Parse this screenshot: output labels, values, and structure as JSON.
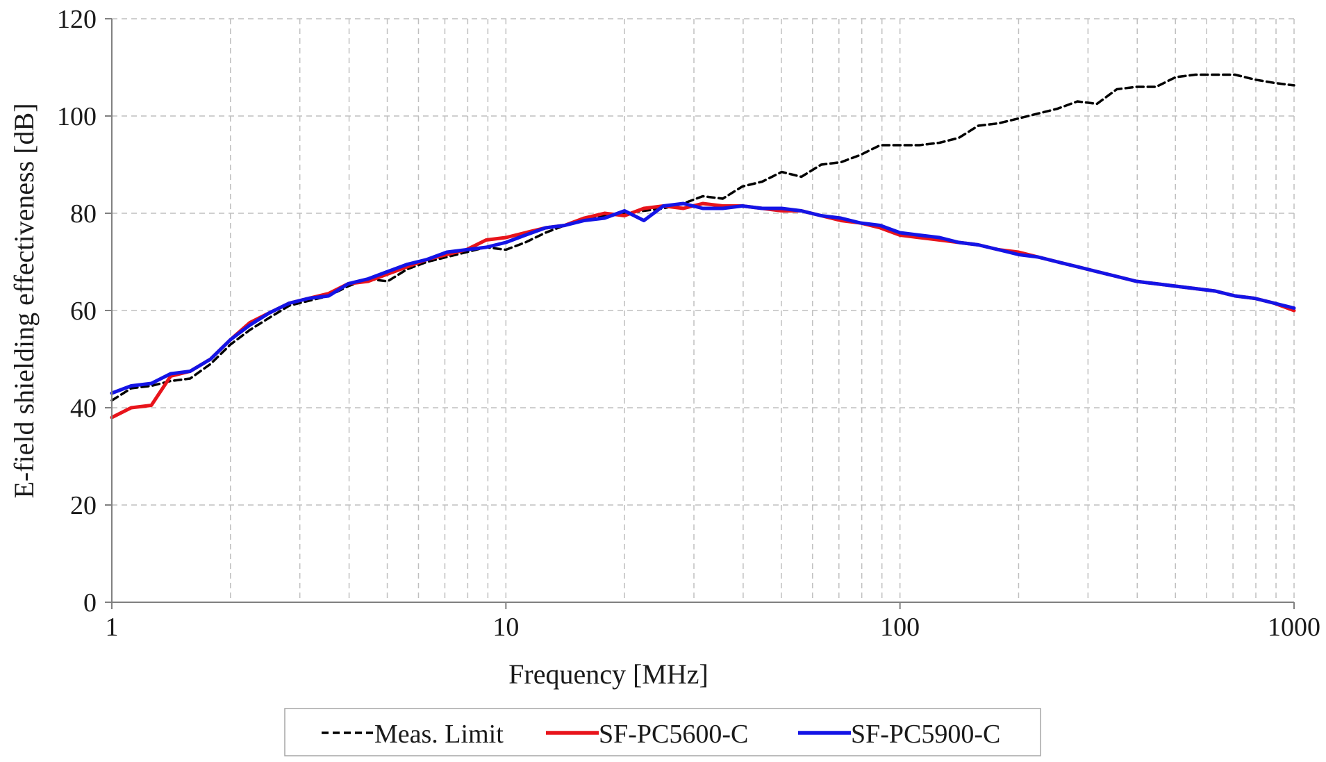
{
  "chart_data": {
    "type": "line",
    "xlabel": "Frequency [MHz]",
    "ylabel": "E-field shielding effectiveness [dB]",
    "xscale": "log",
    "xlim": [
      1,
      1000
    ],
    "ylim": [
      0,
      120
    ],
    "x_ticks": [
      1,
      10,
      100,
      1000
    ],
    "x_tick_labels": [
      "1",
      "10",
      "100",
      "1000"
    ],
    "y_ticks": [
      0,
      20,
      40,
      60,
      80,
      100,
      120
    ],
    "y_tick_labels": [
      "0",
      "20",
      "40",
      "60",
      "80",
      "100",
      "120"
    ],
    "grid": true,
    "legend_position": "bottom",
    "series": [
      {
        "name": "Meas. Limit",
        "color": "#000000",
        "style": "dashed",
        "points": [
          [
            1,
            41.5
          ],
          [
            1.12,
            44
          ],
          [
            1.26,
            44.5
          ],
          [
            1.41,
            45.5
          ],
          [
            1.58,
            46
          ],
          [
            1.78,
            49
          ],
          [
            2,
            53
          ],
          [
            2.24,
            56
          ],
          [
            2.51,
            58.5
          ],
          [
            2.82,
            61
          ],
          [
            3.16,
            62
          ],
          [
            3.55,
            63
          ],
          [
            3.98,
            65
          ],
          [
            4.47,
            66.5
          ],
          [
            5.01,
            66
          ],
          [
            5.62,
            68.5
          ],
          [
            6.31,
            70
          ],
          [
            7.08,
            71
          ],
          [
            7.94,
            72
          ],
          [
            8.91,
            73
          ],
          [
            10,
            72.5
          ],
          [
            11.2,
            74
          ],
          [
            12.6,
            76
          ],
          [
            14.1,
            77.5
          ],
          [
            15.8,
            78.5
          ],
          [
            17.8,
            79.5
          ],
          [
            20,
            80
          ],
          [
            22.4,
            80.5
          ],
          [
            25.1,
            81
          ],
          [
            28.2,
            82
          ],
          [
            31.6,
            83.5
          ],
          [
            35.5,
            83
          ],
          [
            39.8,
            85.5
          ],
          [
            44.7,
            86.5
          ],
          [
            50.1,
            88.5
          ],
          [
            56.2,
            87.5
          ],
          [
            63.1,
            90
          ],
          [
            70.8,
            90.5
          ],
          [
            79.4,
            92
          ],
          [
            89.1,
            94
          ],
          [
            100,
            94
          ],
          [
            112,
            94
          ],
          [
            126,
            94.5
          ],
          [
            141,
            95.5
          ],
          [
            158,
            98
          ],
          [
            178,
            98.5
          ],
          [
            200,
            99.5
          ],
          [
            224,
            100.5
          ],
          [
            251,
            101.5
          ],
          [
            282,
            103
          ],
          [
            316,
            102.5
          ],
          [
            355,
            105.5
          ],
          [
            398,
            106
          ],
          [
            447,
            106
          ],
          [
            501,
            108
          ],
          [
            562,
            108.5
          ],
          [
            631,
            108.5
          ],
          [
            708,
            108.5
          ],
          [
            794,
            107.5
          ],
          [
            891,
            106.8
          ],
          [
            1000,
            106.3
          ]
        ]
      },
      {
        "name": "SF-PC5600-C",
        "color": "#e8141b",
        "style": "solid",
        "points": [
          [
            1,
            38
          ],
          [
            1.12,
            40
          ],
          [
            1.26,
            40.5
          ],
          [
            1.41,
            46.5
          ],
          [
            1.58,
            47.5
          ],
          [
            1.78,
            50
          ],
          [
            2,
            54
          ],
          [
            2.24,
            57.5
          ],
          [
            2.51,
            59.5
          ],
          [
            2.82,
            61.5
          ],
          [
            3.16,
            62.5
          ],
          [
            3.55,
            63.5
          ],
          [
            3.98,
            65.5
          ],
          [
            4.47,
            66
          ],
          [
            5.01,
            67.5
          ],
          [
            5.62,
            69
          ],
          [
            6.31,
            70.5
          ],
          [
            7.08,
            71.5
          ],
          [
            7.94,
            72.5
          ],
          [
            8.91,
            74.5
          ],
          [
            10,
            75
          ],
          [
            11.2,
            76
          ],
          [
            12.6,
            77
          ],
          [
            14.1,
            77.5
          ],
          [
            15.8,
            79
          ],
          [
            17.8,
            80
          ],
          [
            20,
            79.5
          ],
          [
            22.4,
            81
          ],
          [
            25.1,
            81.5
          ],
          [
            28.2,
            81
          ],
          [
            31.6,
            82
          ],
          [
            35.5,
            81.5
          ],
          [
            39.8,
            81.5
          ],
          [
            44.7,
            81
          ],
          [
            50.1,
            80.5
          ],
          [
            56.2,
            80.5
          ],
          [
            63.1,
            79.5
          ],
          [
            70.8,
            78.5
          ],
          [
            79.4,
            78
          ],
          [
            89.1,
            77
          ],
          [
            100,
            75.5
          ],
          [
            112,
            75
          ],
          [
            126,
            74.5
          ],
          [
            141,
            74
          ],
          [
            158,
            73.5
          ],
          [
            178,
            72.5
          ],
          [
            200,
            72
          ],
          [
            224,
            71
          ],
          [
            251,
            70
          ],
          [
            282,
            69
          ],
          [
            316,
            68
          ],
          [
            355,
            67
          ],
          [
            398,
            66
          ],
          [
            447,
            65.5
          ],
          [
            501,
            65
          ],
          [
            562,
            64.5
          ],
          [
            631,
            64
          ],
          [
            708,
            63
          ],
          [
            794,
            62.5
          ],
          [
            891,
            61.5
          ],
          [
            1000,
            60
          ]
        ]
      },
      {
        "name": "SF-PC5900-C",
        "color": "#1414e6",
        "style": "solid",
        "points": [
          [
            1,
            43
          ],
          [
            1.12,
            44.5
          ],
          [
            1.26,
            45
          ],
          [
            1.41,
            47
          ],
          [
            1.58,
            47.5
          ],
          [
            1.78,
            50
          ],
          [
            2,
            54
          ],
          [
            2.24,
            57
          ],
          [
            2.51,
            59.5
          ],
          [
            2.82,
            61.5
          ],
          [
            3.16,
            62.5
          ],
          [
            3.55,
            63
          ],
          [
            3.98,
            65.5
          ],
          [
            4.47,
            66.5
          ],
          [
            5.01,
            68
          ],
          [
            5.62,
            69.5
          ],
          [
            6.31,
            70.5
          ],
          [
            7.08,
            72
          ],
          [
            7.94,
            72.5
          ],
          [
            8.91,
            73
          ],
          [
            10,
            74
          ],
          [
            11.2,
            75.5
          ],
          [
            12.6,
            77
          ],
          [
            14.1,
            77.5
          ],
          [
            15.8,
            78.5
          ],
          [
            17.8,
            79
          ],
          [
            20,
            80.5
          ],
          [
            22.4,
            78.5
          ],
          [
            25.1,
            81.5
          ],
          [
            28.2,
            82
          ],
          [
            31.6,
            81
          ],
          [
            35.5,
            81
          ],
          [
            39.8,
            81.5
          ],
          [
            44.7,
            81
          ],
          [
            50.1,
            81
          ],
          [
            56.2,
            80.5
          ],
          [
            63.1,
            79.5
          ],
          [
            70.8,
            79
          ],
          [
            79.4,
            78
          ],
          [
            89.1,
            77.5
          ],
          [
            100,
            76
          ],
          [
            112,
            75.5
          ],
          [
            126,
            75
          ],
          [
            141,
            74
          ],
          [
            158,
            73.5
          ],
          [
            178,
            72.5
          ],
          [
            200,
            71.5
          ],
          [
            224,
            71
          ],
          [
            251,
            70
          ],
          [
            282,
            69
          ],
          [
            316,
            68
          ],
          [
            355,
            67
          ],
          [
            398,
            66
          ],
          [
            447,
            65.5
          ],
          [
            501,
            65
          ],
          [
            562,
            64.5
          ],
          [
            631,
            64
          ],
          [
            708,
            63
          ],
          [
            794,
            62.5
          ],
          [
            891,
            61.5
          ],
          [
            1000,
            60.5
          ]
        ]
      }
    ]
  }
}
